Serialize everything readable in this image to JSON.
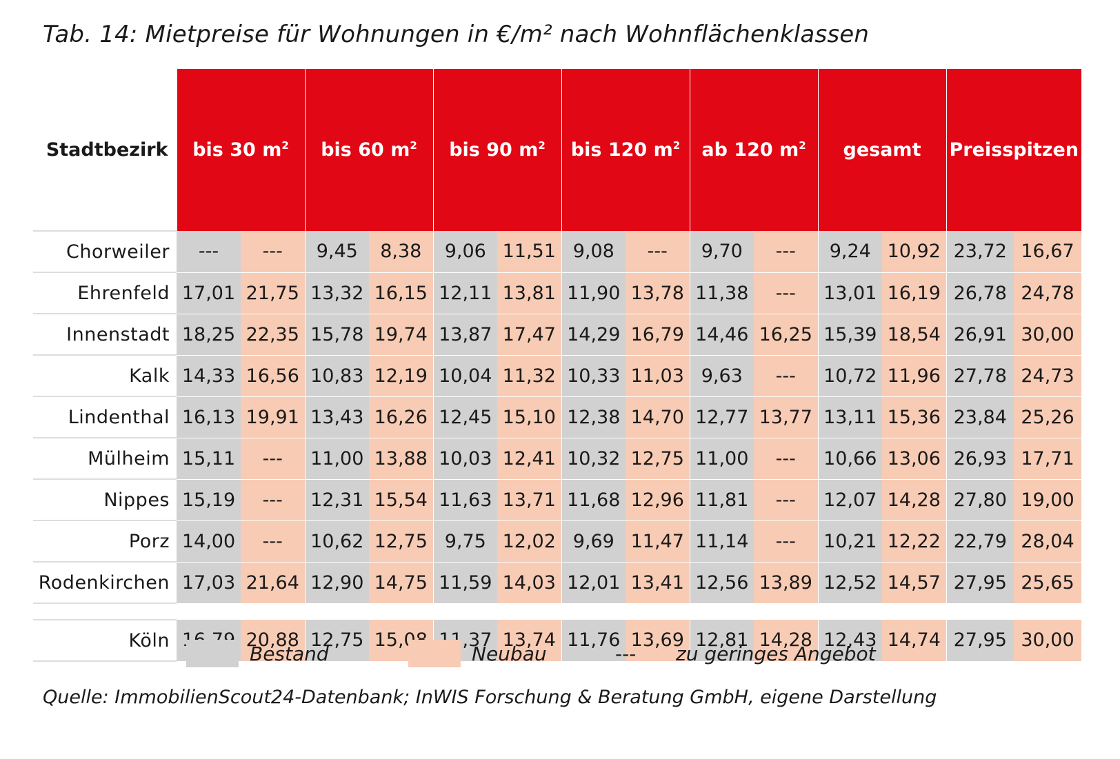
{
  "title": "Tab. 14: Mietpreise für Wohnungen in €/m² nach Wohnflächenklassen",
  "columns": {
    "district": "Stadtbezirk",
    "groups": [
      {
        "label": "bis 30 m",
        "sup": "2"
      },
      {
        "label": "bis 60 m",
        "sup": "2"
      },
      {
        "label": "bis 90 m",
        "sup": "2"
      },
      {
        "label": "bis 120 m",
        "sup": "2"
      },
      {
        "label": "ab 120 m",
        "sup": "2"
      },
      {
        "label": "gesamt",
        "sup": ""
      },
      {
        "label": "Preisspitzen",
        "sup": ""
      }
    ]
  },
  "rows": [
    {
      "name": "Chorweiler",
      "values": [
        "---",
        "---",
        "9,45",
        "8,38",
        "9,06",
        "11,51",
        "9,08",
        "---",
        "9,70",
        "---",
        "9,24",
        "10,92",
        "23,72",
        "16,67"
      ]
    },
    {
      "name": "Ehrenfeld",
      "values": [
        "17,01",
        "21,75",
        "13,32",
        "16,15",
        "12,11",
        "13,81",
        "11,90",
        "13,78",
        "11,38",
        "---",
        "13,01",
        "16,19",
        "26,78",
        "24,78"
      ]
    },
    {
      "name": "Innenstadt",
      "values": [
        "18,25",
        "22,35",
        "15,78",
        "19,74",
        "13,87",
        "17,47",
        "14,29",
        "16,79",
        "14,46",
        "16,25",
        "15,39",
        "18,54",
        "26,91",
        "30,00"
      ]
    },
    {
      "name": "Kalk",
      "values": [
        "14,33",
        "16,56",
        "10,83",
        "12,19",
        "10,04",
        "11,32",
        "10,33",
        "11,03",
        "9,63",
        "---",
        "10,72",
        "11,96",
        "27,78",
        "24,73"
      ]
    },
    {
      "name": "Lindenthal",
      "values": [
        "16,13",
        "19,91",
        "13,43",
        "16,26",
        "12,45",
        "15,10",
        "12,38",
        "14,70",
        "12,77",
        "13,77",
        "13,11",
        "15,36",
        "23,84",
        "25,26"
      ]
    },
    {
      "name": "Mülheim",
      "values": [
        "15,11",
        "---",
        "11,00",
        "13,88",
        "10,03",
        "12,41",
        "10,32",
        "12,75",
        "11,00",
        "---",
        "10,66",
        "13,06",
        "26,93",
        "17,71"
      ]
    },
    {
      "name": "Nippes",
      "values": [
        "15,19",
        "---",
        "12,31",
        "15,54",
        "11,63",
        "13,71",
        "11,68",
        "12,96",
        "11,81",
        "---",
        "12,07",
        "14,28",
        "27,80",
        "19,00"
      ]
    },
    {
      "name": "Porz",
      "values": [
        "14,00",
        "---",
        "10,62",
        "12,75",
        "9,75",
        "12,02",
        "9,69",
        "11,47",
        "11,14",
        "---",
        "10,21",
        "12,22",
        "22,79",
        "28,04"
      ]
    },
    {
      "name": "Rodenkirchen",
      "values": [
        "17,03",
        "21,64",
        "12,90",
        "14,75",
        "11,59",
        "14,03",
        "12,01",
        "13,41",
        "12,56",
        "13,89",
        "12,52",
        "14,57",
        "27,95",
        "25,65"
      ]
    }
  ],
  "total": {
    "name": "Köln",
    "values": [
      "16,79",
      "20,88",
      "12,75",
      "15,08",
      "11,37",
      "13,74",
      "11,76",
      "13,69",
      "12,81",
      "14,28",
      "12,43",
      "14,74",
      "27,95",
      "30,00"
    ]
  },
  "legend": {
    "bestand": "Bestand",
    "neubau": "Neubau",
    "dash": "---",
    "dash_text": "zu geringes Angebot",
    "colors": {
      "bestand": "#d1d1d1",
      "neubau": "#f8cbb4",
      "header": "#e20715"
    }
  },
  "source": "Quelle: ImmobilienScout24-Datenbank; InWIS Forschung & Beratung GmbH, eigene Darstellung"
}
